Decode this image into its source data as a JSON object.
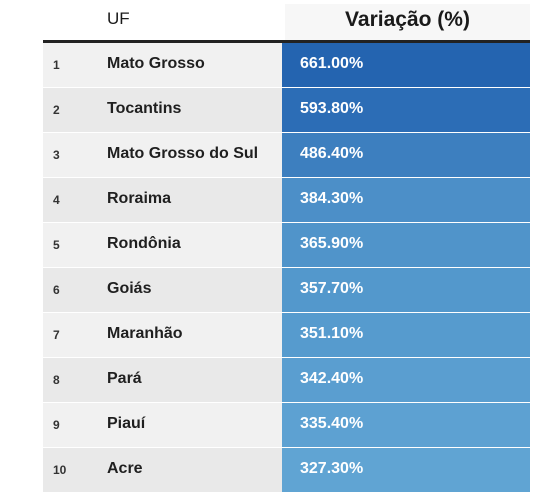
{
  "header": {
    "uf": "UF",
    "variacao": "Variação (%)"
  },
  "rows": [
    {
      "rank": "1",
      "uf": "Mato Grosso",
      "variacao": "661.00%",
      "color": "#2464b0"
    },
    {
      "rank": "2",
      "uf": "Tocantins",
      "variacao": "593.80%",
      "color": "#2c6db6"
    },
    {
      "rank": "3",
      "uf": "Mato Grosso do Sul",
      "variacao": "486.40%",
      "color": "#3d7fbf"
    },
    {
      "rank": "4",
      "uf": "Roraima",
      "variacao": "384.30%",
      "color": "#4c8fc8"
    },
    {
      "rank": "5",
      "uf": "Rondônia",
      "variacao": "365.90%",
      "color": "#5094ca"
    },
    {
      "rank": "6",
      "uf": "Goiás",
      "variacao": "357.70%",
      "color": "#5398cc"
    },
    {
      "rank": "7",
      "uf": "Maranhão",
      "variacao": "351.10%",
      "color": "#569bce"
    },
    {
      "rank": "8",
      "uf": "Pará",
      "variacao": "342.40%",
      "color": "#5a9ed0"
    },
    {
      "rank": "9",
      "uf": "Piauí",
      "variacao": "335.40%",
      "color": "#5da1d2"
    },
    {
      "rank": "10",
      "uf": "Acre",
      "variacao": "327.30%",
      "color": "#60a4d3"
    }
  ]
}
